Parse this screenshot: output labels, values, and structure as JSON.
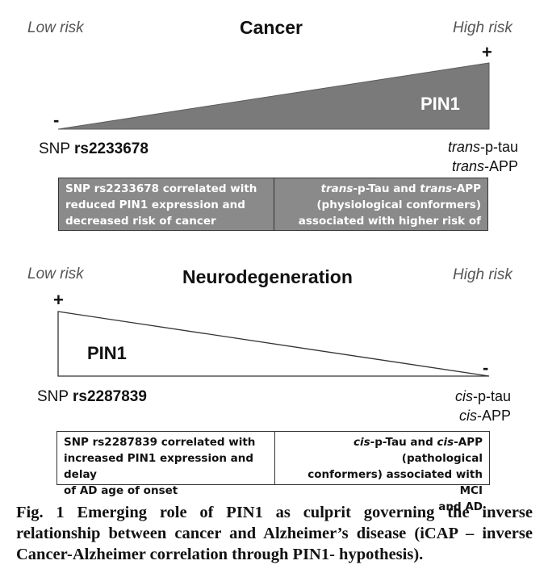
{
  "cancer": {
    "low_risk": "Low risk",
    "title": "Cancer",
    "high_risk": "High risk",
    "plus": "+",
    "minus": "-",
    "pin1": "PIN1",
    "snp_prefix": "SNP ",
    "snp_id": "rs2233678",
    "conformer_1_prefix": "trans",
    "conformer_1_suffix": "-p-tau",
    "conformer_2_prefix": "trans",
    "conformer_2_suffix": "-APP",
    "box_left_lines": [
      "SNP rs2233678 correlated with",
      "reduced PIN1 expression and",
      "decreased risk of cancer"
    ],
    "box_right_line1_a": "trans",
    "box_right_line1_b": "-p-Tau and ",
    "box_right_line1_c": "trans",
    "box_right_line1_d": "-APP",
    "box_right_line2": "(physiological conformers)",
    "box_right_line3": "associated with higher risk of cancer",
    "fill_color": "#7a7a7a"
  },
  "neuro": {
    "low_risk": "Low risk",
    "title": "Neurodegeneration",
    "high_risk": "High risk",
    "plus": "+",
    "minus": "-",
    "pin1": "PIN1",
    "snp_prefix": "SNP ",
    "snp_id": "rs2287839",
    "conformer_1_prefix": "cis",
    "conformer_1_suffix": "-p-tau",
    "conformer_2_prefix": "cis",
    "conformer_2_suffix": "-APP",
    "box_left_lines": [
      "SNP rs2287839 correlated with",
      "increased PIN1 expression and delay",
      "of AD age of onset"
    ],
    "box_right_line1_a": "cis",
    "box_right_line1_b": "-p-Tau and ",
    "box_right_line1_c": "cis",
    "box_right_line1_d": "-APP (pathological",
    "box_right_line2": "conformers) associated with MCI",
    "box_right_line3": "and AD"
  },
  "caption": "Fig. 1 Emerging role of PIN1 as culprit governing the inverse relationship between cancer and Alzheimer’s disease (iCAP – inverse Cancer-Alzheimer correlation through PIN1- hypothesis)."
}
